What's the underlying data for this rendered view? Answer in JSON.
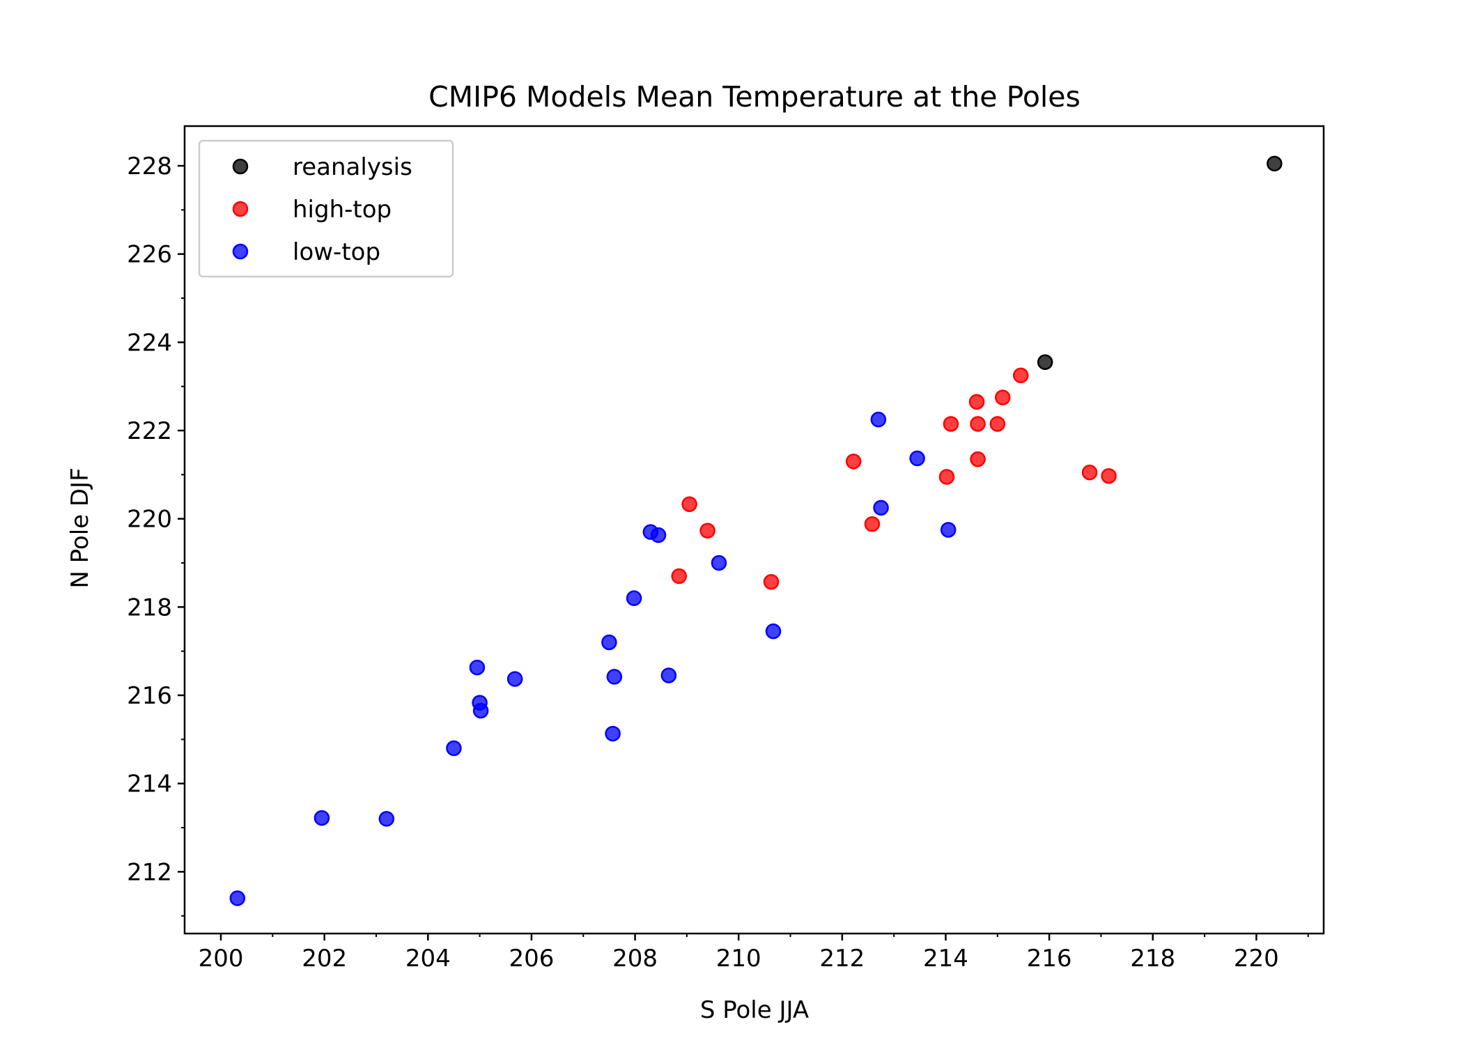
{
  "chart_data": {
    "type": "scatter",
    "title": "CMIP6 Models Mean Temperature at the Poles",
    "xlabel": "S Pole JJA",
    "ylabel": "N Pole DJF",
    "xlim": [
      199.3,
      221.3
    ],
    "ylim": [
      210.6,
      228.9
    ],
    "xticks": [
      200,
      202,
      204,
      206,
      208,
      210,
      212,
      214,
      216,
      218,
      220
    ],
    "yticks": [
      212,
      214,
      216,
      218,
      220,
      222,
      224,
      226,
      228
    ],
    "grid": false,
    "legend_position": "top-left",
    "series": [
      {
        "name": "reanalysis",
        "color": "#000000",
        "points": [
          [
            220.35,
            228.05
          ],
          [
            215.92,
            223.55
          ]
        ]
      },
      {
        "name": "high-top",
        "color": "#ff0000",
        "points": [
          [
            215.45,
            223.25
          ],
          [
            214.6,
            222.65
          ],
          [
            215.1,
            222.75
          ],
          [
            214.1,
            222.15
          ],
          [
            214.62,
            222.15
          ],
          [
            215.0,
            222.15
          ],
          [
            214.62,
            221.35
          ],
          [
            214.02,
            220.95
          ],
          [
            216.78,
            221.05
          ],
          [
            217.15,
            220.97
          ],
          [
            212.22,
            221.3
          ],
          [
            212.58,
            219.88
          ],
          [
            209.05,
            220.33
          ],
          [
            209.4,
            219.73
          ],
          [
            208.85,
            218.7
          ],
          [
            210.63,
            218.57
          ]
        ]
      },
      {
        "name": "low-top",
        "color": "#0000ff",
        "points": [
          [
            212.7,
            222.25
          ],
          [
            213.45,
            221.37
          ],
          [
            212.75,
            220.25
          ],
          [
            214.05,
            219.75
          ],
          [
            208.3,
            219.7
          ],
          [
            208.45,
            219.63
          ],
          [
            209.62,
            219.0
          ],
          [
            207.98,
            218.2
          ],
          [
            210.67,
            217.45
          ],
          [
            207.5,
            217.2
          ],
          [
            207.6,
            216.42
          ],
          [
            208.65,
            216.45
          ],
          [
            205.68,
            216.37
          ],
          [
            204.95,
            216.63
          ],
          [
            205.0,
            215.83
          ],
          [
            205.02,
            215.65
          ],
          [
            207.57,
            215.13
          ],
          [
            204.5,
            214.8
          ],
          [
            201.95,
            213.22
          ],
          [
            203.2,
            213.2
          ],
          [
            200.32,
            211.4
          ]
        ]
      }
    ]
  }
}
